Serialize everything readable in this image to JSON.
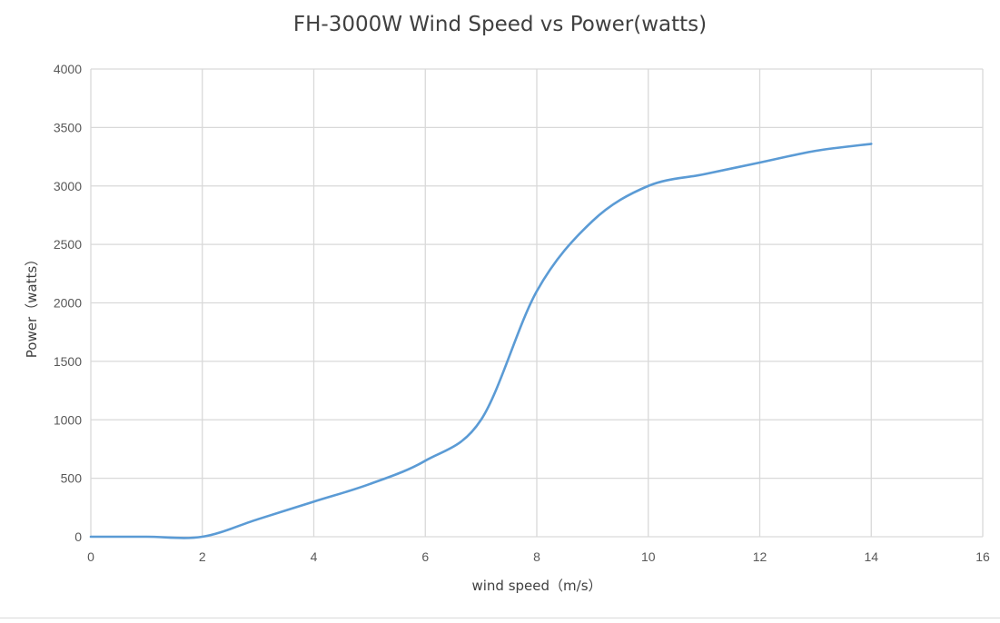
{
  "chart_data": {
    "type": "line",
    "title": "FH-3000W Wind Speed vs Power(watts)",
    "xlabel": "wind speed（m/s）",
    "ylabel": "Power（watts）",
    "xlim": [
      0,
      16
    ],
    "ylim": [
      0,
      4000
    ],
    "xticks": [
      0,
      2,
      4,
      6,
      8,
      10,
      12,
      14,
      16
    ],
    "yticks": [
      0,
      500,
      1000,
      1500,
      2000,
      2500,
      3000,
      3500,
      4000
    ],
    "grid": true,
    "smooth": true,
    "series": [
      {
        "x": [
          0,
          1,
          2,
          3,
          4,
          5,
          6,
          7,
          8,
          9,
          10,
          11,
          12,
          13,
          14
        ],
        "values": [
          0,
          0,
          0,
          150,
          300,
          450,
          650,
          1000,
          2100,
          2700,
          3000,
          3100,
          3200,
          3300,
          3360
        ],
        "color": "#5b9bd5"
      }
    ]
  }
}
